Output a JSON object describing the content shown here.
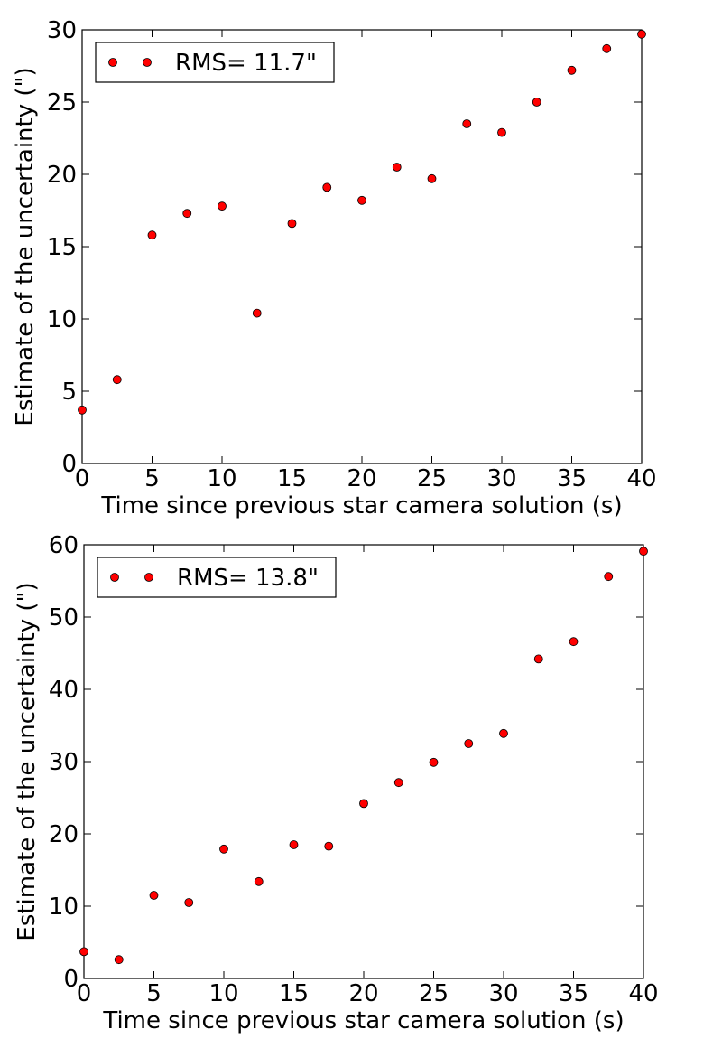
{
  "chart_data": [
    {
      "type": "scatter",
      "xlabel": "Time since previous star camera solution (s)",
      "ylabel": "Estimate of the uncertainty (\")",
      "xlim": [
        0,
        40
      ],
      "ylim": [
        0,
        30
      ],
      "xticks": [
        0,
        5,
        10,
        15,
        20,
        25,
        30,
        35,
        40
      ],
      "yticks": [
        0,
        5,
        10,
        15,
        20,
        25,
        30
      ],
      "grid": false,
      "legend_position": "top-left",
      "marker_color": "#ff0000",
      "series": [
        {
          "name": "RMS= 11.7\"",
          "x": [
            0,
            2.5,
            5,
            7.5,
            10,
            12.5,
            15,
            17.5,
            20,
            22.5,
            25,
            27.5,
            30,
            32.5,
            35,
            37.5,
            40
          ],
          "y": [
            3.7,
            5.8,
            15.8,
            17.3,
            17.8,
            10.4,
            16.6,
            19.1,
            18.2,
            20.5,
            19.7,
            23.5,
            22.9,
            25.0,
            27.2,
            28.7,
            29.7
          ]
        }
      ]
    },
    {
      "type": "scatter",
      "xlabel": "Time since previous star camera solution (s)",
      "ylabel": "Estimate of the uncertainty (\")",
      "xlim": [
        0,
        40
      ],
      "ylim": [
        0,
        60
      ],
      "xticks": [
        0,
        5,
        10,
        15,
        20,
        25,
        30,
        35,
        40
      ],
      "yticks": [
        0,
        10,
        20,
        30,
        40,
        50,
        60
      ],
      "grid": false,
      "legend_position": "top-left",
      "marker_color": "#ff0000",
      "series": [
        {
          "name": "RMS= 13.8\"",
          "x": [
            0,
            2.5,
            5,
            7.5,
            10,
            12.5,
            15,
            17.5,
            20,
            22.5,
            25,
            27.5,
            30,
            32.5,
            35,
            37.5,
            40
          ],
          "y": [
            3.7,
            2.6,
            11.5,
            10.5,
            17.9,
            13.4,
            18.5,
            18.3,
            24.2,
            27.1,
            29.9,
            32.5,
            33.9,
            44.2,
            46.6,
            55.6,
            59.1
          ]
        }
      ]
    }
  ]
}
